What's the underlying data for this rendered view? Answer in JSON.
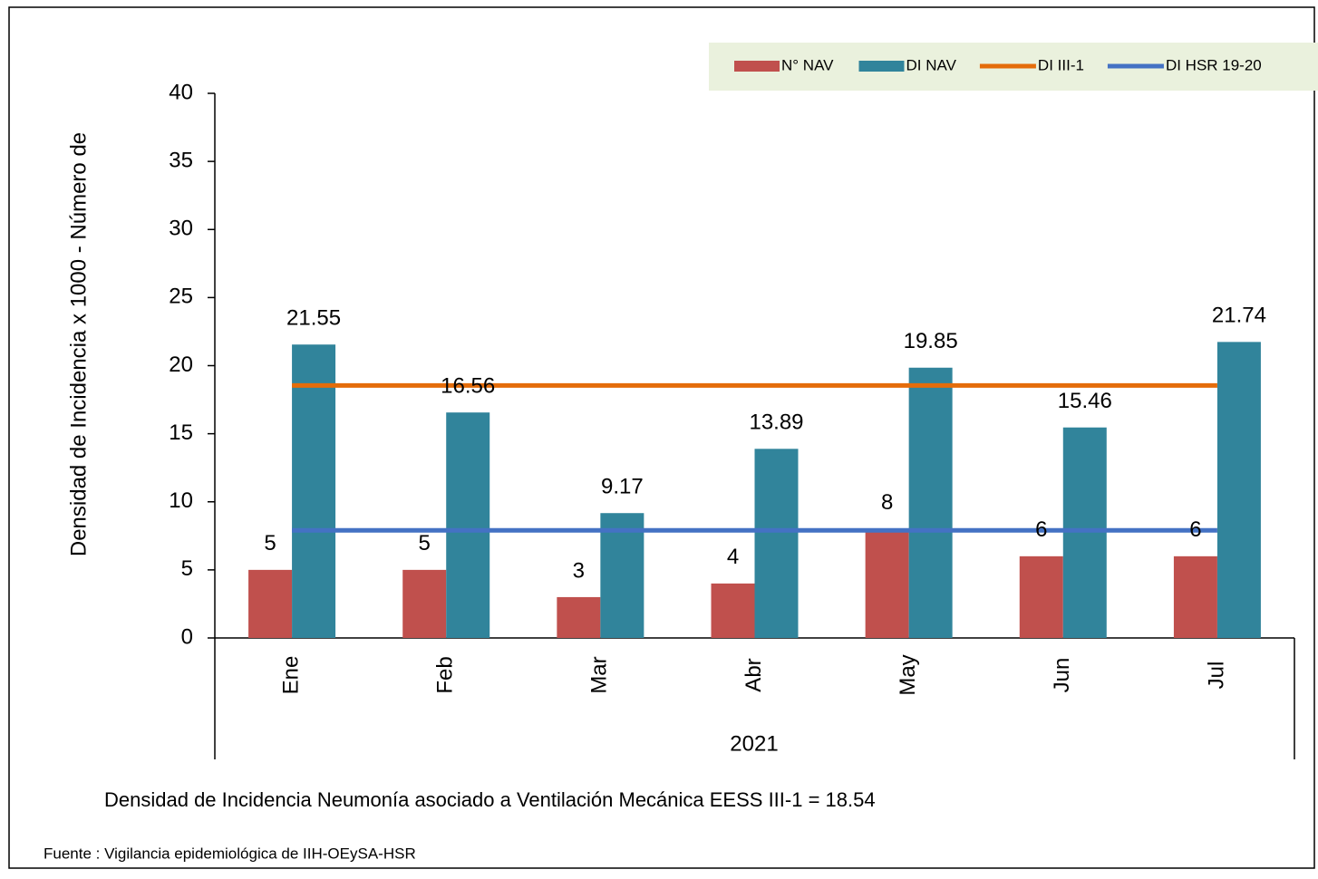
{
  "chart_data": {
    "type": "bar",
    "y_axis_label": "Densidad de Incidencia x 1000  - Número de",
    "x_group_label": "2021",
    "annotation": "Densidad de Incidencia Neumonía asociado a Ventilación Mecánica EESS III-1 = 18.54",
    "source": "Fuente : Vigilancia epidemiológica de IIH-OEySA-HSR",
    "categories": [
      "Ene",
      "Feb",
      "Mar",
      "Abr",
      "May",
      "Jun",
      "Jul"
    ],
    "series": [
      {
        "name": "N° NAV",
        "color": "#c0504d",
        "kind": "bar",
        "values": [
          5,
          5,
          3,
          4,
          8,
          6,
          6
        ]
      },
      {
        "name": "DI NAV",
        "color": "#31849b",
        "kind": "bar",
        "values": [
          21.55,
          16.56,
          9.17,
          13.89,
          19.85,
          15.46,
          21.74
        ]
      },
      {
        "name": "DI III-1",
        "color": "#e46c0a",
        "kind": "line",
        "values": [
          18.54,
          18.54,
          18.54,
          18.54,
          18.54,
          18.54,
          18.54
        ]
      },
      {
        "name": "DI HSR 19-20",
        "color": "#4472c4",
        "kind": "line",
        "values": [
          7.9,
          7.9,
          7.9,
          7.9,
          7.9,
          7.9,
          7.9
        ]
      }
    ],
    "ylim": [
      0,
      40
    ],
    "yticks": [
      0,
      5,
      10,
      15,
      20,
      25,
      30,
      35,
      40
    ],
    "legend": "top-right"
  }
}
